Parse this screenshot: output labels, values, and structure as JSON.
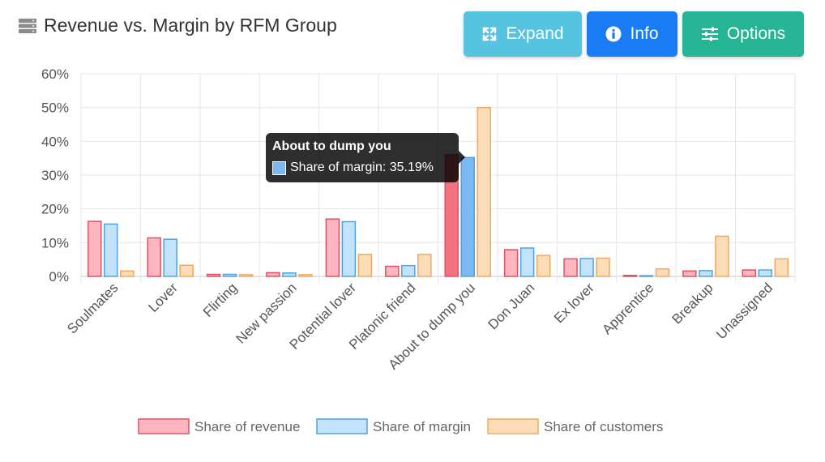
{
  "header": {
    "title": "Revenue vs. Margin by RFM Group",
    "title_icon": "server-icon",
    "buttons": [
      {
        "label": "Expand",
        "icon": "expand-icon",
        "color": "#56c3e0"
      },
      {
        "label": "Info",
        "icon": "info-icon",
        "color": "#1a7cf5"
      },
      {
        "label": "Options",
        "icon": "sliders-icon",
        "color": "#25b595"
      }
    ]
  },
  "tooltip": {
    "title": "About to dump you",
    "text": "Share of margin: 35.19%"
  },
  "chart_data": {
    "type": "bar",
    "title": "Revenue vs. Margin by RFM Group",
    "categories": [
      "Soulmates",
      "Lover",
      "Flirting",
      "New passion",
      "Potential lover",
      "Platonic friend",
      "About to dump you",
      "Don Juan",
      "Ex lover",
      "Apprentice",
      "Breakup",
      "Unassigned"
    ],
    "series": [
      {
        "name": "Share of revenue",
        "fill": "#ffb6c1",
        "stroke": "#e05263",
        "hover_fill": "#f47280",
        "values": [
          16.3,
          11.4,
          0.6,
          1.1,
          17.0,
          3.0,
          36.0,
          7.9,
          5.2,
          0.3,
          1.6,
          1.9
        ]
      },
      {
        "name": "Share of margin",
        "fill": "#c3e2fb",
        "stroke": "#4fa3de",
        "hover_fill": "#7cb9f2",
        "values": [
          15.5,
          11.0,
          0.6,
          1.0,
          16.2,
          3.2,
          35.19,
          8.4,
          5.3,
          0.2,
          1.7,
          1.9
        ]
      },
      {
        "name": "Share of customers",
        "fill": "#fdddb8",
        "stroke": "#f0a860",
        "hover_fill": "#fdddb8",
        "values": [
          1.6,
          3.3,
          0.5,
          0.5,
          6.5,
          6.5,
          50.0,
          6.2,
          5.4,
          2.2,
          11.9,
          5.2
        ]
      }
    ],
    "highlight_index": 6,
    "y_ticks": [
      "0%",
      "10%",
      "20%",
      "30%",
      "40%",
      "50%",
      "60%"
    ],
    "ylim": [
      0,
      60
    ],
    "grid": true,
    "legend_position": "bottom"
  }
}
